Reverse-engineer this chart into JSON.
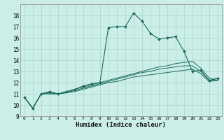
{
  "xlabel": "Humidex (Indice chaleur)",
  "bg_color": "#cceee8",
  "grid_color": "#aad4cc",
  "line_color": "#1a6b5a",
  "xlim": [
    -0.5,
    23.5
  ],
  "ylim": [
    9,
    19
  ],
  "yticks": [
    9,
    10,
    11,
    12,
    13,
    14,
    15,
    16,
    17,
    18
  ],
  "xticks": [
    0,
    1,
    2,
    3,
    4,
    5,
    6,
    7,
    8,
    9,
    10,
    11,
    12,
    13,
    14,
    15,
    16,
    17,
    18,
    19,
    20,
    21,
    22,
    23
  ],
  "series_with_markers": [
    [
      10.7,
      9.7,
      11.0,
      11.2,
      11.0,
      11.2,
      11.4,
      11.7,
      11.9,
      12.0,
      16.9,
      17.0,
      17.0,
      18.2,
      17.5,
      16.4,
      15.9,
      16.0,
      16.1,
      14.8,
      13.0,
      13.1,
      12.2,
      12.4
    ]
  ],
  "series_no_markers": [
    [
      10.7,
      9.7,
      11.0,
      11.1,
      11.0,
      11.1,
      11.4,
      11.6,
      11.8,
      12.0,
      12.2,
      12.4,
      12.6,
      12.8,
      13.0,
      13.2,
      13.4,
      13.5,
      13.7,
      13.8,
      13.9,
      13.3,
      12.4,
      12.2
    ],
    [
      10.7,
      9.7,
      11.0,
      11.0,
      11.0,
      11.1,
      11.3,
      11.5,
      11.7,
      11.9,
      12.1,
      12.3,
      12.5,
      12.7,
      12.9,
      13.0,
      13.2,
      13.3,
      13.4,
      13.5,
      13.5,
      13.0,
      12.2,
      12.2
    ],
    [
      10.7,
      9.7,
      11.0,
      11.0,
      11.0,
      11.1,
      11.2,
      11.4,
      11.6,
      11.8,
      12.0,
      12.1,
      12.3,
      12.5,
      12.6,
      12.7,
      12.8,
      12.9,
      13.0,
      13.1,
      13.2,
      12.8,
      12.1,
      12.2
    ]
  ]
}
